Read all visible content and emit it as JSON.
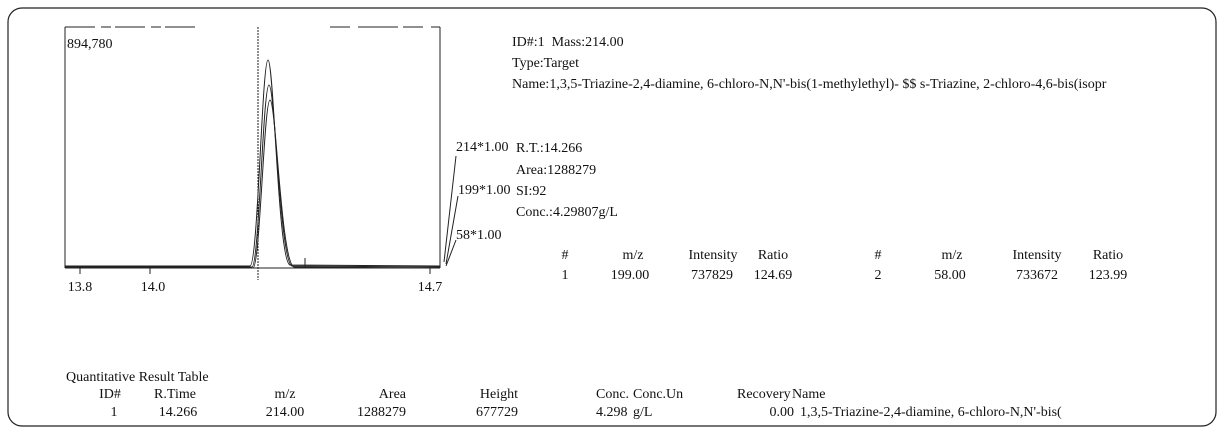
{
  "chromatogram": {
    "max_intensity": "894,780",
    "x_labels": [
      "13.8",
      "14.0",
      "14.7"
    ],
    "channels": [
      "214*1.00",
      "199*1.00",
      "58*1.00"
    ]
  },
  "compound": {
    "id_mass": "ID#:1  Mass:214.00",
    "type": "Type:Target",
    "name": "Name:1,3,5-Triazine-2,4-diamine, 6-chloro-N,N'-bis(1-methylethyl)- $$ s-Triazine, 2-chloro-4,6-bis(isopr",
    "rt": "R.T.:14.266",
    "area": "Area:1288279",
    "si": "SI:92",
    "conc": "Conc.:4.29807g/L"
  },
  "ion_table": {
    "headers": [
      "#",
      "m/z",
      "Intensity",
      "Ratio",
      "#",
      "m/z",
      "Intensity",
      "Ratio"
    ],
    "row": [
      "1",
      "199.00",
      "737829",
      "124.69",
      "2",
      "58.00",
      "733672",
      "123.99"
    ]
  },
  "result_table": {
    "title": "Quantitative Result Table",
    "headers": [
      "ID#",
      "R.Time",
      "m/z",
      "Area",
      "Height",
      "Conc.",
      "Conc.Un",
      "Recovery",
      "Name"
    ],
    "row": [
      "1",
      "14.266",
      "214.00",
      "1288279",
      "677729",
      "4.298",
      "g/L",
      "0.00",
      "1,3,5-Triazine-2,4-diamine, 6-chloro-N,N'-bis("
    ]
  }
}
